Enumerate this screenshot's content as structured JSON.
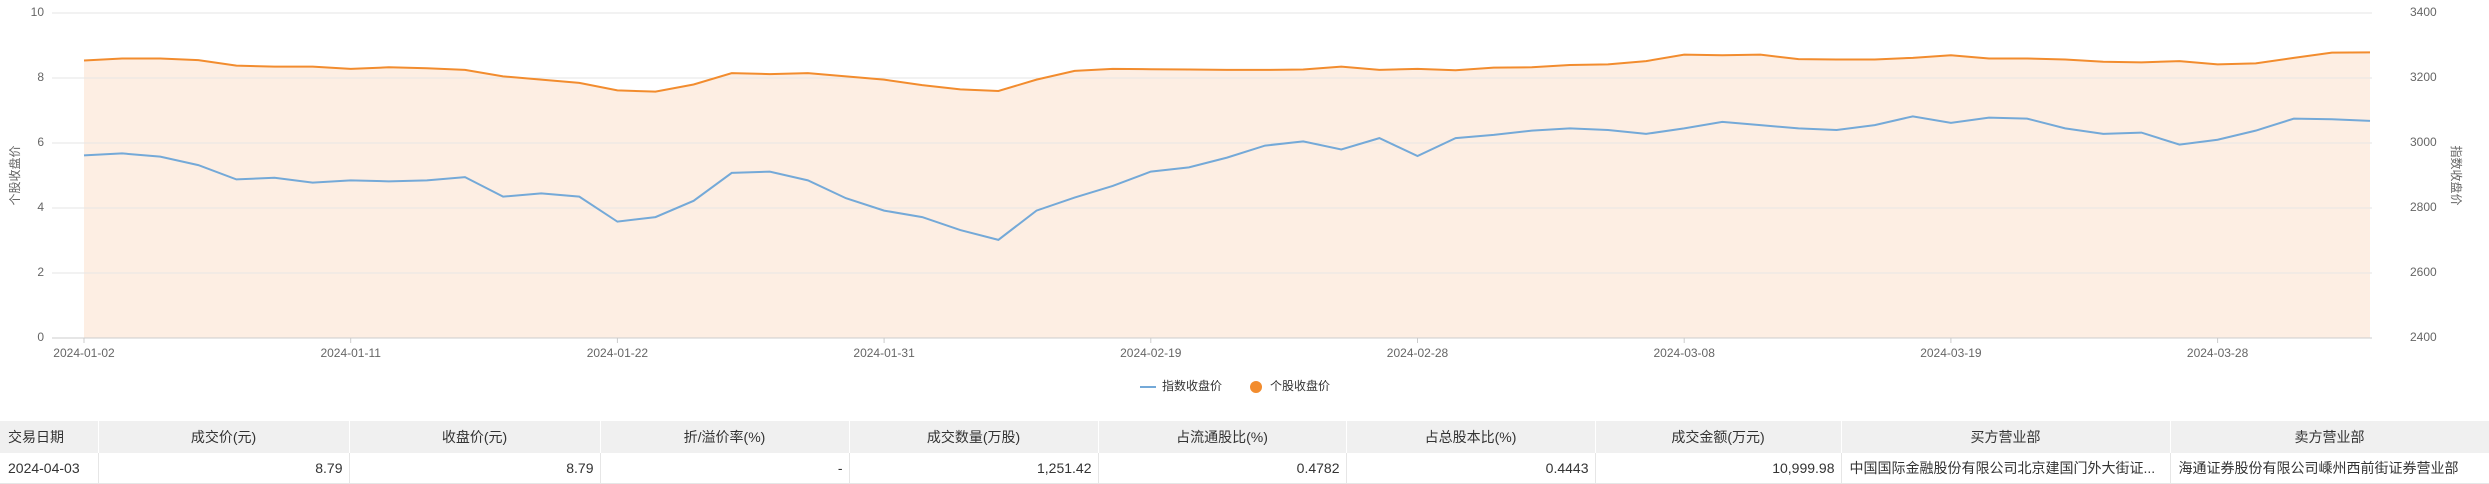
{
  "chart_data": {
    "type": "line",
    "x": [
      "2024-01-02",
      null,
      null,
      null,
      null,
      null,
      null,
      "2024-01-11",
      null,
      null,
      null,
      null,
      null,
      null,
      "2024-01-22",
      null,
      null,
      null,
      null,
      null,
      null,
      "2024-01-31",
      null,
      null,
      null,
      null,
      null,
      null,
      "2024-02-19",
      null,
      null,
      null,
      null,
      null,
      null,
      "2024-02-28",
      null,
      null,
      null,
      null,
      null,
      null,
      "2024-03-08",
      null,
      null,
      null,
      null,
      null,
      null,
      "2024-03-19",
      null,
      null,
      null,
      null,
      null,
      null,
      "2024-03-28",
      null,
      null,
      null,
      null
    ],
    "ylabel": "个股收盘价",
    "y2label": "指数收盘价",
    "ylim": [
      0,
      10
    ],
    "yticks": [
      0,
      2,
      4,
      6,
      8,
      10
    ],
    "y2lim": [
      2400,
      3400
    ],
    "y2ticks": [
      2400,
      2600,
      2800,
      3000,
      3200,
      3400
    ],
    "grid": true,
    "legend": "bottom",
    "series": [
      {
        "name": "指数收盘价",
        "color": "#74a9d8",
        "axis": "y2",
        "values": [
          2962,
          2968,
          2958,
          2932,
          2888,
          2893,
          2878,
          2885,
          2882,
          2885,
          2895,
          2835,
          2845,
          2835,
          2758,
          2772,
          2822,
          2908,
          2912,
          2885,
          2830,
          2792,
          2772,
          2732,
          2702,
          2792,
          2832,
          2868,
          2912,
          2925,
          2955,
          2992,
          3005,
          2980,
          3015,
          2960,
          3015,
          3025,
          3038,
          3045,
          3040,
          3028,
          3045,
          3065,
          3055,
          3045,
          3040,
          3055,
          3082,
          3062,
          3078,
          3075,
          3045,
          3028,
          3032,
          2995,
          3010,
          3038,
          3075,
          3073,
          3068
        ]
      },
      {
        "name": "个股收盘价",
        "color": "#f28c2e",
        "axis": "y",
        "area": "#fdeee3",
        "values": [
          8.54,
          8.6,
          8.6,
          8.55,
          8.38,
          8.35,
          8.35,
          8.28,
          8.33,
          8.3,
          8.25,
          8.05,
          7.95,
          7.85,
          7.62,
          7.58,
          7.8,
          8.15,
          8.12,
          8.15,
          8.05,
          7.95,
          7.78,
          7.65,
          7.6,
          7.95,
          8.22,
          8.28,
          8.27,
          8.26,
          8.25,
          8.25,
          8.26,
          8.35,
          8.25,
          8.28,
          8.24,
          8.32,
          8.33,
          8.4,
          8.42,
          8.52,
          8.72,
          8.7,
          8.72,
          8.58,
          8.57,
          8.57,
          8.62,
          8.7,
          8.6,
          8.6,
          8.57,
          8.5,
          8.48,
          8.52,
          8.42,
          8.45,
          8.62,
          8.78,
          8.79
        ]
      }
    ]
  },
  "table": {
    "header": [
      "交易日期",
      "成交价(元)",
      "收盘价(元)",
      "折/溢价率(%)",
      "成交数量(万股)",
      "占流通股比(%)",
      "占总股本比(%)",
      "成交金额(万元)",
      "买方营业部",
      "卖方营业部"
    ],
    "rows": [
      [
        "2024-04-03",
        "8.79",
        "8.79",
        "-",
        "1,251.42",
        "0.4782",
        "0.4443",
        "10,999.98",
        "中国国际金融股份有限公司北京建国门外大街证...",
        "海通证券股份有限公司嵊州西前街证券营业部"
      ]
    ]
  }
}
